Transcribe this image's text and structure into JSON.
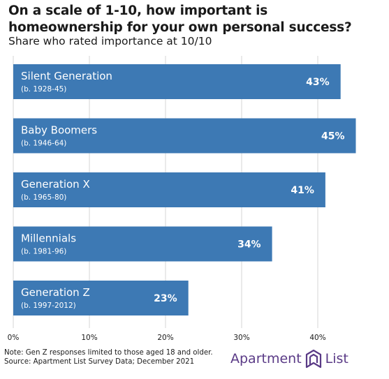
{
  "title": "On a scale of 1-10, how important is homeownership for your own personal success?",
  "subtitle": "Share who rated importance at 10/10",
  "chart_data": {
    "type": "bar",
    "orientation": "horizontal",
    "categories": [
      "Silent Generation",
      "Baby Boomers",
      "Generation X",
      "Millennials",
      "Generation Z"
    ],
    "category_notes": [
      "(b. 1928-45)",
      "(b. 1946-64)",
      "(b. 1965-80)",
      "(b. 1981-96)",
      "(b. 1997-2012)"
    ],
    "values": [
      43,
      45,
      41,
      34,
      23
    ],
    "value_labels": [
      "43%",
      "45%",
      "41%",
      "34%",
      "23%"
    ],
    "xlim": [
      0,
      45
    ],
    "xticks": [
      0,
      10,
      20,
      30,
      40
    ],
    "xtick_labels": [
      "0%",
      "10%",
      "20%",
      "30%",
      "40%"
    ],
    "grid": "vertical",
    "bar_color": "#3d79b4"
  },
  "footnotes": {
    "note": "Note: Gen Z responses limited to those aged 18 and older.",
    "source": "Source: Apartment List Survey Data; December 2021"
  },
  "logo": {
    "left": "Apartment",
    "right": "List",
    "color": "#5a3a86",
    "icon": "apartment-list-logo-icon"
  }
}
